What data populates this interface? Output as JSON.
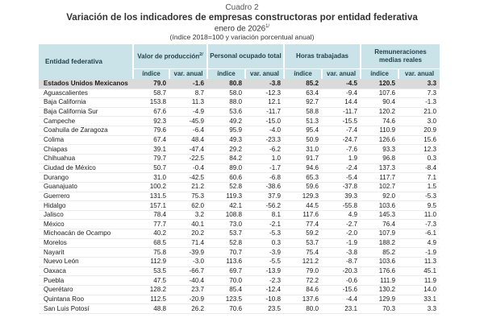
{
  "caption": "Cuadro 2",
  "title": "Variación de los indicadores de empresas constructoras por entidad federativa",
  "period": "enero de 2026",
  "period_note_ref": "1/",
  "units_note": "(índice 2018=100 y variación porcentual anual)",
  "headers": {
    "entity": "Entidad federativa",
    "groups": [
      "Valor de producción",
      "Personal ocupado total",
      "Horas trabajadas",
      "Remuneraciones medias reales"
    ],
    "group0_ref": "2/",
    "sub_index": "índice",
    "sub_var": "var. anual"
  },
  "total": {
    "name": "Estados Unidos Mexicanos",
    "values": [
      "79.0",
      "-1.6",
      "80.8",
      "-3.8",
      "85.2",
      "-4.5",
      "120.5",
      "3.3"
    ]
  },
  "rows": [
    {
      "name": "Aguascalientes",
      "values": [
        "58.7",
        "8.7",
        "58.0",
        "-12.3",
        "63.4",
        "-9.4",
        "107.6",
        "7.3"
      ]
    },
    {
      "name": "Baja California",
      "values": [
        "153.8",
        "11.3",
        "88.0",
        "12.1",
        "92.7",
        "14.4",
        "90.4",
        "-1.3"
      ]
    },
    {
      "name": "Baja California Sur",
      "values": [
        "67.6",
        "-4.9",
        "53.6",
        "-11.7",
        "58.8",
        "-11.7",
        "120.2",
        "21.0"
      ]
    },
    {
      "name": "Campeche",
      "values": [
        "92.3",
        "-45.9",
        "49.2",
        "-15.0",
        "51.3",
        "-15.5",
        "74.6",
        "3.0"
      ]
    },
    {
      "name": "Coahuila de Zaragoza",
      "values": [
        "79.6",
        "-6.4",
        "95.9",
        "-4.0",
        "95.4",
        "-7.4",
        "110.9",
        "20.9"
      ]
    },
    {
      "name": "Colima",
      "values": [
        "67.4",
        "48.4",
        "49.3",
        "-23.3",
        "50.9",
        "-24.7",
        "126.6",
        "15.6"
      ]
    },
    {
      "name": "Chiapas",
      "values": [
        "39.1",
        "-47.4",
        "29.2",
        "-6.2",
        "31.0",
        "-7.6",
        "93.3",
        "12.3"
      ]
    },
    {
      "name": "Chihuahua",
      "values": [
        "79.7",
        "-22.5",
        "84.2",
        "1.0",
        "91.7",
        "1.9",
        "96.8",
        "0.3"
      ]
    },
    {
      "name": "Ciudad de México",
      "values": [
        "50.7",
        "-0.4",
        "89.0",
        "-1.7",
        "94.6",
        "-2.4",
        "137.3",
        "-8.4"
      ]
    },
    {
      "name": "Durango",
      "values": [
        "31.0",
        "-42.5",
        "60.6",
        "-6.8",
        "65.3",
        "-5.4",
        "117.7",
        "7.1"
      ]
    },
    {
      "name": "Guanajuato",
      "values": [
        "100.2",
        "21.2",
        "52.8",
        "-38.6",
        "59.6",
        "-37.8",
        "102.7",
        "1.5"
      ]
    },
    {
      "name": "Guerrero",
      "values": [
        "131.5",
        "75.3",
        "119.3",
        "37.9",
        "129.3",
        "39.3",
        "92.0",
        "-5.3"
      ]
    },
    {
      "name": "Hidalgo",
      "values": [
        "157.1",
        "62.0",
        "42.1",
        "-56.2",
        "44.5",
        "-55.8",
        "103.6",
        "9.5"
      ]
    },
    {
      "name": "Jalisco",
      "values": [
        "78.4",
        "3.2",
        "108.8",
        "8.1",
        "117.6",
        "4.9",
        "145.3",
        "11.0"
      ]
    },
    {
      "name": "México",
      "values": [
        "77.7",
        "40.1",
        "73.0",
        "-2.1",
        "77.4",
        "-2.7",
        "76.4",
        "-7.3"
      ]
    },
    {
      "name": "Michoacán de Ocampo",
      "values": [
        "40.2",
        "20.2",
        "53.7",
        "-5.3",
        "59.2",
        "-2.0",
        "107.9",
        "-6.1"
      ]
    },
    {
      "name": "Morelos",
      "values": [
        "68.5",
        "71.4",
        "52.8",
        "0.3",
        "53.7",
        "-1.9",
        "188.2",
        "4.9"
      ]
    },
    {
      "name": "Nayarit",
      "values": [
        "75.8",
        "-39.9",
        "70.7",
        "-3.9",
        "75.4",
        "-3.8",
        "85.2",
        "-1.9"
      ]
    },
    {
      "name": "Nuevo León",
      "values": [
        "112.9",
        "-3.0",
        "113.6",
        "-5.5",
        "121.2",
        "-8.7",
        "103.6",
        "11.3"
      ]
    },
    {
      "name": "Oaxaca",
      "values": [
        "53.5",
        "-66.7",
        "69.7",
        "-13.9",
        "79.0",
        "-20.3",
        "176.6",
        "45.1"
      ]
    },
    {
      "name": "Puebla",
      "values": [
        "47.5",
        "-40.4",
        "70.0",
        "-2.3",
        "72.2",
        "-0.6",
        "111.9",
        "11.9"
      ]
    },
    {
      "name": "Querétaro",
      "values": [
        "128.2",
        "23.7",
        "85.4",
        "-12.4",
        "84.6",
        "-15.6",
        "130.2",
        "14.0"
      ]
    },
    {
      "name": "Quintana Roo",
      "values": [
        "112.5",
        "-20.9",
        "123.5",
        "-10.8",
        "137.6",
        "-4.4",
        "129.9",
        "33.1"
      ]
    },
    {
      "name": "San Luis Potosí",
      "values": [
        "48.8",
        "26.2",
        "70.6",
        "23.5",
        "80.0",
        "23.1",
        "70.3",
        "3.3"
      ]
    }
  ]
}
